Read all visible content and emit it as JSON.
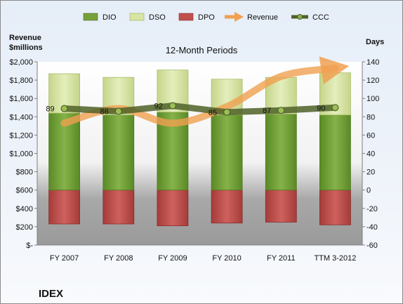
{
  "company": "IDEX",
  "chart_data": {
    "type": "bar",
    "title": "12-Month Periods",
    "categories": [
      "FY 2007",
      "FY 2008",
      "FY 2009",
      "FY 2010",
      "FY 2011",
      "TTM 3-2012"
    ],
    "stacked_days_series": [
      {
        "name": "DPO",
        "color": "#c0504d",
        "values": [
          -37,
          -37,
          -39,
          -36,
          -35,
          -38
        ]
      },
      {
        "name": "DIO",
        "color": "#76a13a",
        "values": [
          84,
          82,
          85,
          82,
          83,
          82
        ]
      },
      {
        "name": "DSO",
        "color": "#d7e4a3",
        "values": [
          43,
          41,
          46,
          39,
          40,
          46
        ]
      }
    ],
    "line_series": [
      {
        "name": "Revenue",
        "axis": "left",
        "color": "#f0a050",
        "values": [
          1330,
          1490,
          1330,
          1510,
          1840,
          1930
        ]
      },
      {
        "name": "CCC",
        "axis": "right",
        "color": "#4f6228",
        "values": [
          89,
          86,
          92,
          85,
          87,
          90
        ]
      }
    ],
    "ccc_labels": [
      "89",
      "86",
      "92",
      "85",
      "87",
      "90"
    ],
    "left_axis": {
      "label_line1": "Revenue",
      "label_line2": "$millions",
      "min": 0,
      "max": 2000,
      "step": 200,
      "tick_labels": [
        "$-",
        "$200",
        "$400",
        "$600",
        "$800",
        "$1,000",
        "$1,200",
        "$1,400",
        "$1,600",
        "$1,800",
        "$2,000"
      ]
    },
    "right_axis": {
      "label": "Days",
      "min": -60,
      "max": 140,
      "step": 20,
      "tick_labels": [
        "-60",
        "-40",
        "-20",
        "0",
        "20",
        "40",
        "60",
        "80",
        "100",
        "120",
        "140"
      ]
    },
    "legend": [
      {
        "name": "DIO",
        "kind": "box",
        "color": "#76a13a"
      },
      {
        "name": "DSO",
        "kind": "box",
        "color": "#d7e4a3"
      },
      {
        "name": "DPO",
        "kind": "box",
        "color": "#c0504d"
      },
      {
        "name": "Revenue",
        "kind": "arrow",
        "color": "#f0a050"
      },
      {
        "name": "CCC",
        "kind": "line",
        "color": "#4f6228"
      }
    ],
    "legend_position": "top",
    "grid": false
  }
}
